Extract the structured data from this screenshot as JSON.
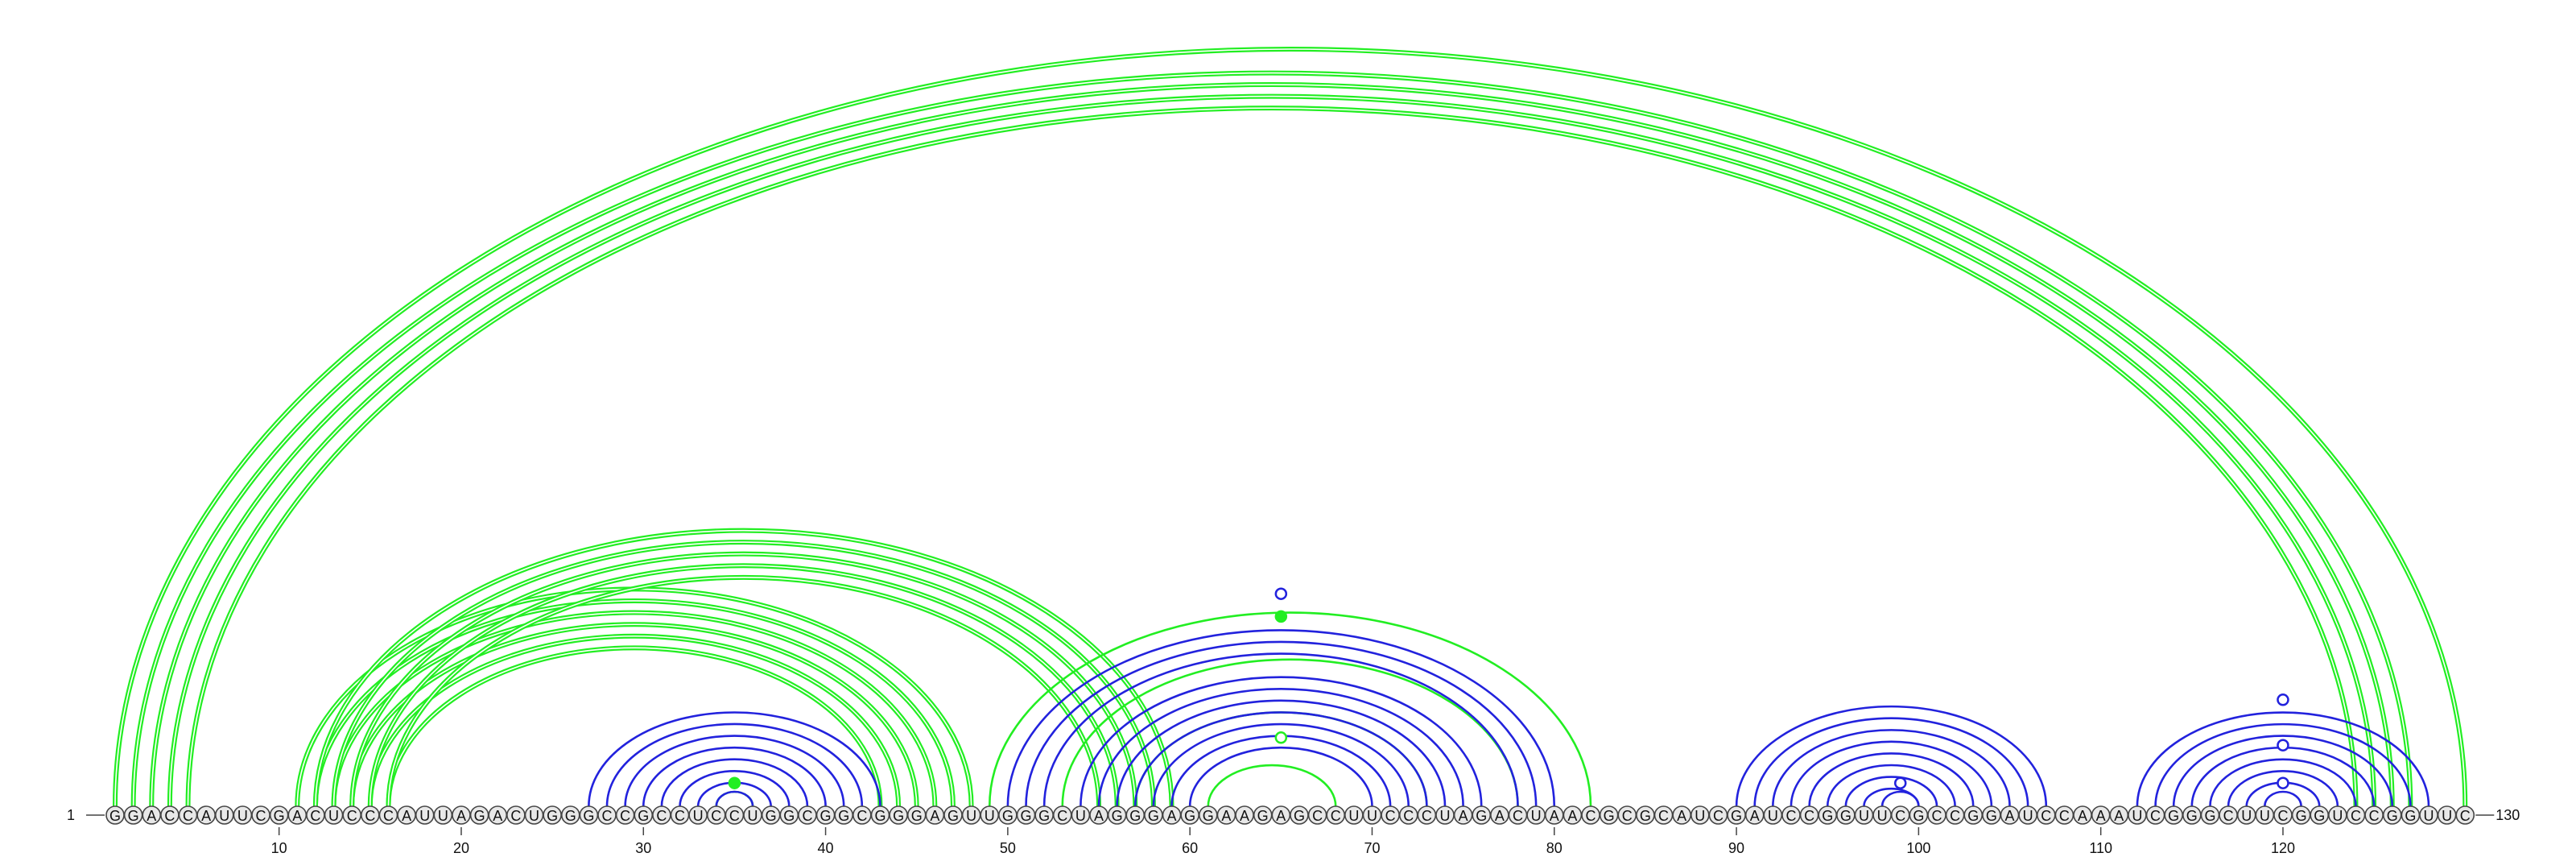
{
  "sequence": "GGACCAUUCGACUCCCAUUAGACUGGGCCGCCUCCUGGCGGCGGGAGUUGGGCUAGGGAGGAAGAGCCUUCCCUAGACUAACGCGCAUCGAUCCGGUUCGCCGGAUCCAAAUCGGGCUUCGGUCCGGUUC",
  "start_label": "1",
  "end_label": "130",
  "ticks": [
    {
      "pos": 10,
      "label": "10"
    },
    {
      "pos": 20,
      "label": "20"
    },
    {
      "pos": 30,
      "label": "30"
    },
    {
      "pos": 40,
      "label": "40"
    },
    {
      "pos": 50,
      "label": "50"
    },
    {
      "pos": 60,
      "label": "60"
    },
    {
      "pos": 70,
      "label": "70"
    },
    {
      "pos": 80,
      "label": "80"
    },
    {
      "pos": 90,
      "label": "90"
    },
    {
      "pos": 100,
      "label": "100"
    },
    {
      "pos": 110,
      "label": "110"
    },
    {
      "pos": 120,
      "label": "120"
    }
  ],
  "colors": {
    "green": "#22ee22",
    "blue": "#2222dd"
  },
  "arc_groups": [
    {
      "color": "green",
      "style": "double",
      "pairs": [
        [
          1,
          130
        ],
        [
          2,
          127
        ],
        [
          3,
          126
        ],
        [
          4,
          125
        ],
        [
          5,
          124
        ]
      ]
    },
    {
      "color": "green",
      "style": "double",
      "pairs": [
        [
          11,
          48
        ],
        [
          12,
          47
        ],
        [
          13,
          46
        ],
        [
          14,
          45
        ],
        [
          15,
          44
        ],
        [
          16,
          43
        ]
      ]
    },
    {
      "color": "green",
      "style": "double",
      "pairs": [
        [
          12,
          59
        ],
        [
          13,
          58
        ],
        [
          14,
          57
        ],
        [
          15,
          56
        ],
        [
          16,
          55
        ]
      ]
    },
    {
      "color": "green",
      "style": "single",
      "pairs": [
        [
          49,
          82
        ],
        [
          53,
          78
        ],
        [
          57,
          73
        ]
      ]
    },
    {
      "color": "green",
      "style": "single",
      "pairs": [
        [
          61,
          68
        ],
        [
          34,
          36
        ]
      ]
    },
    {
      "color": "blue",
      "style": "single",
      "pairs": [
        [
          27,
          43
        ],
        [
          28,
          42
        ],
        [
          29,
          41
        ],
        [
          30,
          40
        ],
        [
          31,
          39
        ],
        [
          32,
          38
        ],
        [
          33,
          37
        ],
        [
          34,
          36
        ]
      ]
    },
    {
      "color": "blue",
      "style": "single",
      "pairs": [
        [
          50,
          80
        ],
        [
          51,
          79
        ],
        [
          52,
          78
        ],
        [
          54,
          76
        ],
        [
          55,
          75
        ],
        [
          56,
          74
        ],
        [
          57,
          73
        ],
        [
          58,
          72
        ],
        [
          59,
          71
        ],
        [
          60,
          70
        ]
      ]
    },
    {
      "color": "blue",
      "style": "single",
      "pairs": [
        [
          90,
          107
        ],
        [
          91,
          106
        ],
        [
          92,
          105
        ],
        [
          93,
          104
        ],
        [
          94,
          103
        ],
        [
          95,
          102
        ],
        [
          96,
          101
        ],
        [
          97,
          100
        ],
        [
          98,
          100
        ]
      ]
    },
    {
      "color": "blue",
      "style": "single",
      "pairs": [
        [
          112,
          128
        ],
        [
          113,
          127
        ],
        [
          114,
          126
        ],
        [
          115,
          125
        ],
        [
          116,
          124
        ],
        [
          117,
          123
        ],
        [
          118,
          122
        ],
        [
          119,
          121
        ]
      ]
    }
  ],
  "markers": [
    {
      "pos": 35,
      "height": 0.02,
      "color": "green",
      "filled": true
    },
    {
      "pos": 65,
      "height": 0.27,
      "color": "blue",
      "filled": false
    },
    {
      "pos": 65,
      "height": 0.24,
      "color": "green",
      "filled": true
    },
    {
      "pos": 65,
      "height": 0.08,
      "color": "green",
      "filled": false
    },
    {
      "pos": 99,
      "height": 0.02,
      "color": "blue",
      "filled": false
    },
    {
      "pos": 120,
      "height": 0.13,
      "color": "blue",
      "filled": false
    },
    {
      "pos": 120,
      "height": 0.07,
      "color": "blue",
      "filled": false
    },
    {
      "pos": 120,
      "height": 0.02,
      "color": "blue",
      "filled": false
    }
  ]
}
